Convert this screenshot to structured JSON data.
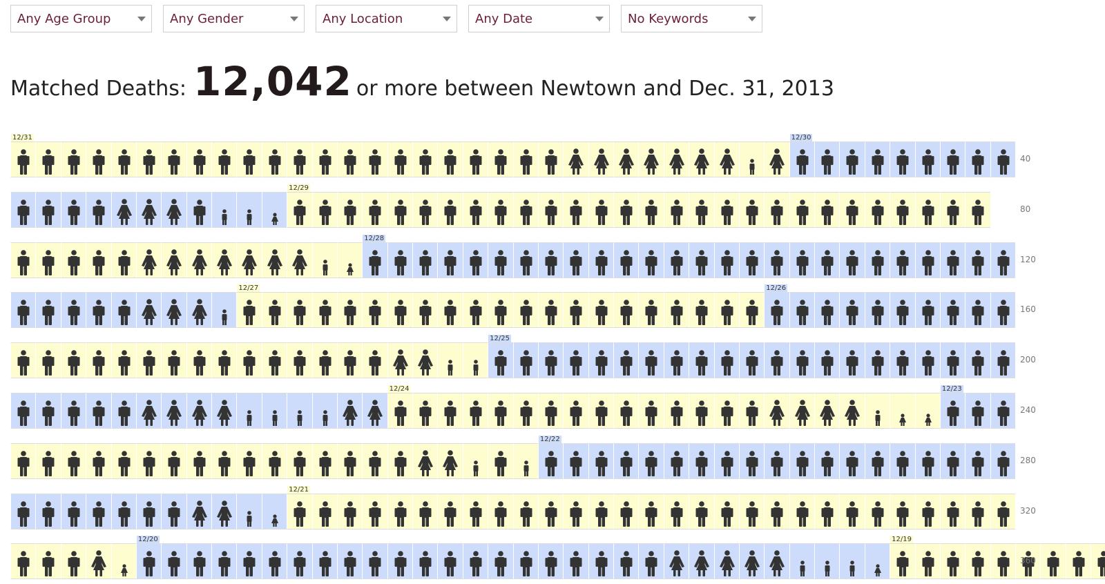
{
  "filters": [
    {
      "label": "Any Age Group"
    },
    {
      "label": "Any Gender"
    },
    {
      "label": "Any Location"
    },
    {
      "label": "Any Date"
    },
    {
      "label": "No Keywords"
    }
  ],
  "headline": {
    "prefix": "Matched Deaths:",
    "count": "12,042",
    "suffix": "or more between Newtown and Dec. 31, 2013"
  },
  "colors": {
    "yellow": "#fdfdd0",
    "blue": "#ccdcfa",
    "figure": "#333333",
    "filter_text": "#6b1e3a"
  },
  "icon_legend": {
    "m": "adult-male-icon",
    "f": "adult-female-icon",
    "t": "teen-icon",
    "c": "child-icon"
  },
  "rows": [
    {
      "count": "40",
      "segments": [
        {
          "date": "12/31",
          "figures": "mmmmmmmmmmmmmmmmmmmmmmffffffftf"
        },
        {
          "date": "12/30",
          "figures": "mmmmmmmmm"
        }
      ]
    },
    {
      "count": "80",
      "segments": [
        {
          "date": "",
          "figures": "mmmmfffmttc"
        },
        {
          "date": "12/29",
          "figures": "mmmmmmmmmmmmmmmmmmmmmmmmmmmm"
        }
      ]
    },
    {
      "count": "120",
      "segments": [
        {
          "date": "",
          "figures": "mmmmmffffffftc"
        },
        {
          "date": "12/28",
          "figures": "mmmmmmmmmmmmmmmmmmmmmmmmmm"
        }
      ]
    },
    {
      "count": "160",
      "segments": [
        {
          "date": "",
          "figures": "mmmmmffft"
        },
        {
          "date": "12/27",
          "figures": "mmmmmmmmmmmmmmmmmmmmm"
        },
        {
          "date": "12/26",
          "figures": "mmmmmmmmmm"
        }
      ]
    },
    {
      "count": "200",
      "segments": [
        {
          "date": "",
          "figures": "mmmmmmmmmmmmmmmfftt"
        },
        {
          "date": "12/25",
          "figures": "mmmmmmmmmmmmmmmmmmmmm"
        }
      ]
    },
    {
      "count": "240",
      "segments": [
        {
          "date": "",
          "figures": "mmmmmffffttttff"
        },
        {
          "date": "12/24",
          "figures": "mmmmmmmmmmmmmmmfffftcc"
        },
        {
          "date": "12/23",
          "figures": "mmm"
        }
      ]
    },
    {
      "count": "280",
      "segments": [
        {
          "date": "",
          "figures": "mmmmmmmmmmmmmmmmfftmt"
        },
        {
          "date": "12/22",
          "figures": "mmmmmmmmmmmmmmmmmmm"
        }
      ]
    },
    {
      "count": "320",
      "segments": [
        {
          "date": "",
          "figures": "mmmmmmmfftc"
        },
        {
          "date": "12/21",
          "figures": "mmmmmmmmmmmmmmmmmmmmmmmmmmmmm"
        }
      ]
    },
    {
      "count": "360",
      "segments": [
        {
          "date": "",
          "figures": "mmmfc"
        },
        {
          "date": "12/20",
          "figures": "mmmmmmmmmmmmmmmmmmmmmffffftttc"
        },
        {
          "date": "12/19",
          "figures": "mmmmmmmmm"
        }
      ]
    }
  ]
}
